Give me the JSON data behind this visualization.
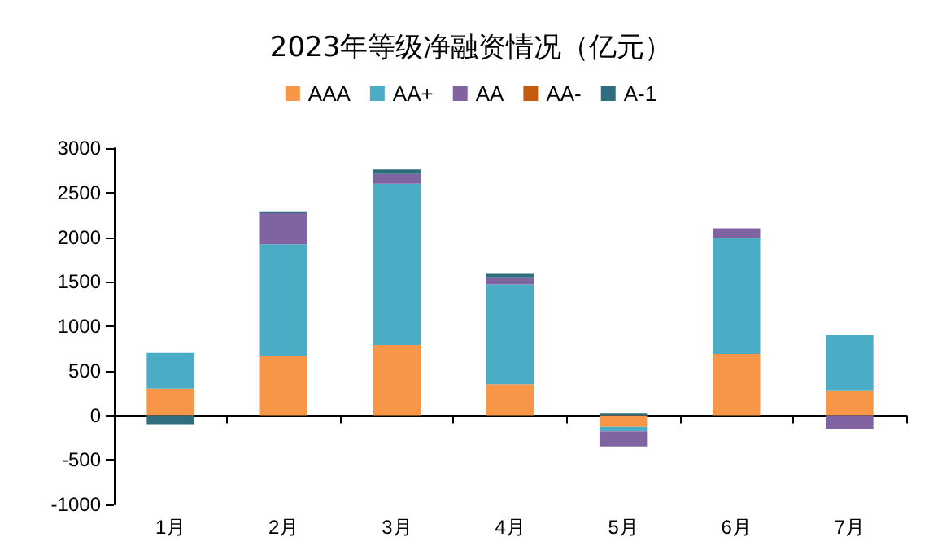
{
  "chart_data": {
    "type": "bar",
    "title": "2023年等级净融资情况（亿元）",
    "stacked": true,
    "legend": "top",
    "categories": [
      "1月",
      "2月",
      "3月",
      "4月",
      "5月",
      "6月",
      "7月"
    ],
    "ylim": [
      -1000,
      3000
    ],
    "yticks": [
      -1000,
      -500,
      0,
      500,
      1000,
      1500,
      2000,
      2500,
      3000
    ],
    "series": [
      {
        "name": "AAA",
        "color": "#f79646",
        "values": [
          300,
          670,
          790,
          350,
          -130,
          690,
          280
        ]
      },
      {
        "name": "AA+",
        "color": "#4bacc6",
        "values": [
          400,
          1250,
          1810,
          1120,
          -50,
          1300,
          620
        ]
      },
      {
        "name": "AA",
        "color": "#8064a2",
        "values": [
          0,
          350,
          110,
          70,
          -170,
          110,
          -150
        ]
      },
      {
        "name": "AA-",
        "color": "#c55a11",
        "values": [
          0,
          0,
          0,
          0,
          0,
          0,
          0
        ]
      },
      {
        "name": "A-1",
        "color": "#2e6e7e",
        "values": [
          -100,
          20,
          50,
          50,
          20,
          0,
          0
        ]
      }
    ]
  }
}
